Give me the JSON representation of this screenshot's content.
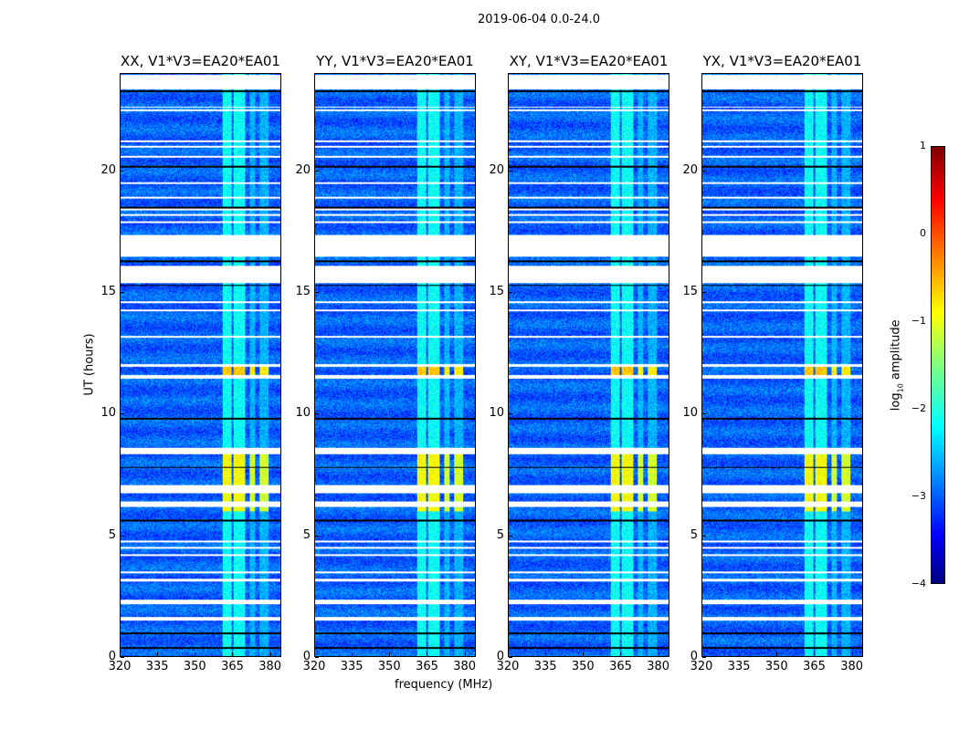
{
  "chart_data": {
    "type": "heatmap",
    "title": "2019-06-04 0.0-24.0",
    "xlabel": "frequency (MHz)",
    "ylabel": "UT (hours)",
    "xlim": [
      320,
      384.5
    ],
    "ylim": [
      0,
      24
    ],
    "xticks": [
      "320",
      "335",
      "350",
      "365",
      "380"
    ],
    "xtick_values": [
      320,
      335,
      350,
      365,
      380
    ],
    "yticks": [
      "0",
      "5",
      "10",
      "15",
      "20"
    ],
    "ytick_values": [
      0,
      5,
      10,
      15,
      20
    ],
    "panels": [
      {
        "title": "XX, V1*V3=EA20*EA01"
      },
      {
        "title": "YY, V1*V3=EA20*EA01"
      },
      {
        "title": "XY, V1*V3=EA20*EA01"
      },
      {
        "title": "YX, V1*V3=EA20*EA01"
      }
    ],
    "colorbar": {
      "label": "log10 amplitude",
      "label_main": "log",
      "label_sub": "10",
      "label_rest": " amplitude",
      "range": [
        -4,
        1
      ],
      "ticks": [
        "1",
        "0",
        "−1",
        "−2",
        "−3",
        "−4"
      ],
      "tick_values": [
        1,
        0,
        -1,
        -2,
        -3,
        -4
      ],
      "colormap": "jet"
    },
    "background_level": -2.9,
    "rfi_bands_mhz": [
      [
        361,
        364.5
      ],
      [
        365.5,
        370
      ]
    ],
    "weak_bands_mhz": [
      [
        372,
        374
      ],
      [
        376,
        379.5
      ]
    ],
    "bright_periods_hours": [
      {
        "range": [
          6.0,
          8.4
        ],
        "level": -0.9
      },
      {
        "range": [
          11.6,
          12.0
        ],
        "level": -0.6
      }
    ],
    "flagged_hours": [
      [
        1.5,
        1.62
      ],
      [
        2.15,
        2.35
      ],
      [
        3.1,
        3.2
      ],
      [
        3.42,
        3.5
      ],
      [
        4.15,
        4.22
      ],
      [
        4.45,
        4.52
      ],
      [
        4.72,
        4.78
      ],
      [
        6.15,
        6.4
      ],
      [
        6.75,
        7.05
      ],
      [
        8.35,
        8.6
      ],
      [
        11.45,
        11.62
      ],
      [
        11.95,
        12.05
      ],
      [
        13.15,
        13.22
      ],
      [
        14.22,
        14.3
      ],
      [
        14.58,
        14.65
      ],
      [
        15.4,
        16.1
      ],
      [
        16.5,
        17.4
      ],
      [
        17.88,
        17.95
      ],
      [
        18.17,
        18.25
      ],
      [
        18.4,
        18.47
      ],
      [
        18.88,
        18.95
      ],
      [
        19.47,
        19.55
      ],
      [
        20.58,
        20.65
      ],
      [
        20.98,
        21.05
      ],
      [
        21.2,
        21.27
      ],
      [
        22.48,
        22.55
      ],
      [
        22.62,
        22.68
      ],
      [
        23.4,
        24.0
      ]
    ],
    "dark_lines_hours": [
      0.35,
      0.95,
      5.6,
      7.8,
      9.8,
      15.3,
      16.3,
      18.5,
      20.2,
      23.3
    ]
  }
}
